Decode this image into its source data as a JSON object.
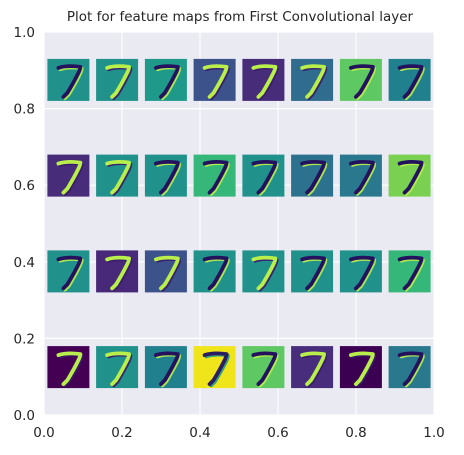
{
  "chart_data": {
    "type": "image-grid",
    "title": "Plot for feature maps from First Convolutional layer",
    "xlabel": "",
    "ylabel": "",
    "xlim": [
      0.0,
      1.0
    ],
    "ylim": [
      0.0,
      1.0
    ],
    "x_ticks": [
      "0.0",
      "0.2",
      "0.4",
      "0.6",
      "0.8",
      "1.0"
    ],
    "y_ticks": [
      "0.0",
      "0.2",
      "0.4",
      "0.6",
      "0.8",
      "1.0"
    ],
    "grid": true,
    "rows": 4,
    "cols": 8,
    "digit": "7",
    "colormap": "viridis",
    "colors": {
      "axes_bg": "#eaeaf2",
      "grid": "#ffffff",
      "text": "#262626",
      "stroke_fg": "#b9ef4a",
      "stroke_bg": "#3a1a6d"
    },
    "tiles": [
      {
        "bg": "#21918c",
        "style": "neg"
      },
      {
        "bg": "#21918c",
        "style": "pos"
      },
      {
        "bg": "#1f9a8a",
        "style": "neg"
      },
      {
        "bg": "#3b528b",
        "style": "pos"
      },
      {
        "bg": "#472c7a",
        "style": "pos"
      },
      {
        "bg": "#2f6c8e",
        "style": "pos"
      },
      {
        "bg": "#5ec962",
        "style": "neg"
      },
      {
        "bg": "#21808d",
        "style": "neg"
      },
      {
        "bg": "#472c7a",
        "style": "pos"
      },
      {
        "bg": "#21918c",
        "style": "pos"
      },
      {
        "bg": "#21918c",
        "style": "neg"
      },
      {
        "bg": "#35b779",
        "style": "neg"
      },
      {
        "bg": "#21918c",
        "style": "neg"
      },
      {
        "bg": "#2c728e",
        "style": "neg"
      },
      {
        "bg": "#2a788e",
        "style": "neg"
      },
      {
        "bg": "#7ad151",
        "style": "neg"
      },
      {
        "bg": "#21918c",
        "style": "neg"
      },
      {
        "bg": "#482878",
        "style": "pos"
      },
      {
        "bg": "#3b528b",
        "style": "pos"
      },
      {
        "bg": "#21918c",
        "style": "neg"
      },
      {
        "bg": "#21918c",
        "style": "pos"
      },
      {
        "bg": "#21918c",
        "style": "neg"
      },
      {
        "bg": "#21918c",
        "style": "neg"
      },
      {
        "bg": "#35b779",
        "style": "neg"
      },
      {
        "bg": "#440154",
        "style": "pos"
      },
      {
        "bg": "#21918c",
        "style": "pos"
      },
      {
        "bg": "#21808d",
        "style": "neg"
      },
      {
        "bg": "#f0e51a",
        "style": "dark"
      },
      {
        "bg": "#5ec962",
        "style": "neg"
      },
      {
        "bg": "#472d7b",
        "style": "pos"
      },
      {
        "bg": "#3b0052",
        "style": "pos"
      },
      {
        "bg": "#2a788e",
        "style": "neg"
      }
    ]
  }
}
